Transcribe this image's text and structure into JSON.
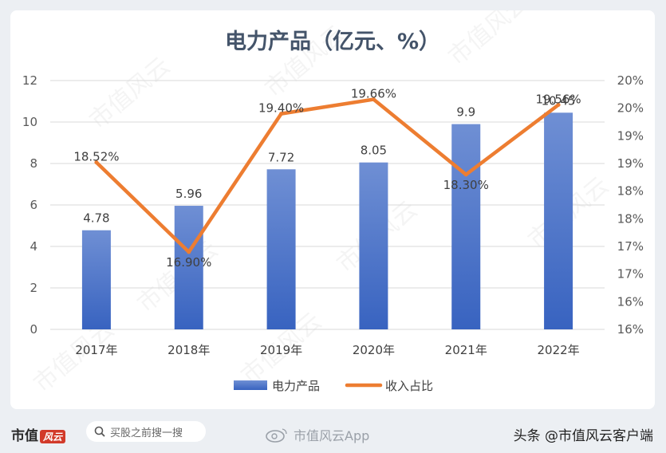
{
  "watermark_text": "市值风云",
  "chart_data": {
    "type": "bar+line",
    "title": "电力产品（亿元、%）",
    "categories": [
      "2017年",
      "2018年",
      "2019年",
      "2020年",
      "2021年",
      "2022年"
    ],
    "series": [
      {
        "name": "电力产品",
        "type": "bar",
        "axis": "left",
        "values": [
          4.78,
          5.96,
          7.72,
          8.05,
          9.9,
          10.45
        ],
        "labels": [
          "4.78",
          "5.96",
          "7.72",
          "8.05",
          "9.9",
          "10.45"
        ],
        "color": "#4472c4"
      },
      {
        "name": "收入占比",
        "type": "line",
        "axis": "right",
        "values": [
          18.52,
          16.9,
          19.4,
          19.66,
          18.3,
          19.56
        ],
        "labels": [
          "18.52%",
          "16.90%",
          "19.40%",
          "19.66%",
          "18.30%",
          "19.56%"
        ],
        "color": "#ed7d31"
      }
    ],
    "y_left": {
      "min": 0,
      "max": 12,
      "ticks": [
        "0",
        "2",
        "4",
        "6",
        "8",
        "10",
        "12"
      ]
    },
    "y_right": {
      "min": 15.5,
      "max": 20,
      "ticks": [
        "16%",
        "16%",
        "17%",
        "17%",
        "18%",
        "18%",
        "19%",
        "19%",
        "20%",
        "20%"
      ]
    },
    "grid": "horizontal",
    "legend_position": "bottom"
  },
  "footer": {
    "logo_text": "市值",
    "logo_badge": "风云",
    "search_placeholder": "买股之前搜一搜",
    "weibo_text": "市值风云App",
    "source_text": "头条 @市值风云客户端"
  }
}
